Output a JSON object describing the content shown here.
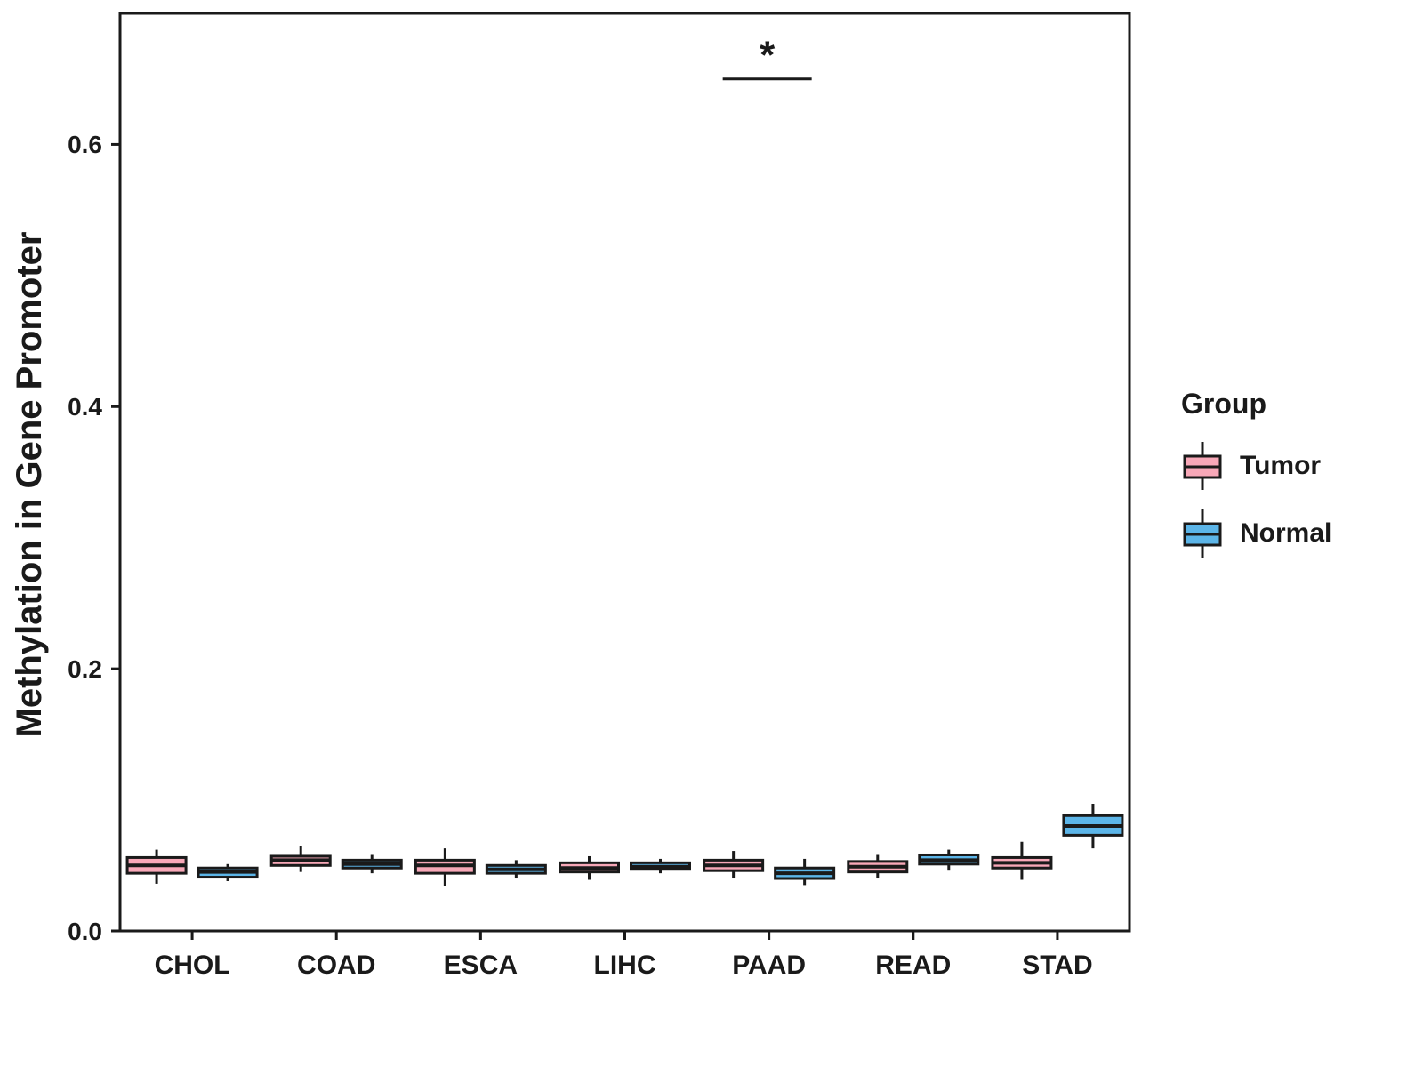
{
  "chart_data": {
    "type": "boxplot",
    "title": "",
    "ylabel": "Methylation in Gene Promoter",
    "xlabel": "",
    "categories": [
      "CHOL",
      "COAD",
      "ESCA",
      "LIHC",
      "PAAD",
      "READ",
      "STAD"
    ],
    "ylim": [
      0,
      0.7
    ],
    "yticks": [
      0.0,
      0.2,
      0.4,
      0.6
    ],
    "grid": "off",
    "legend": {
      "title": "Group",
      "position": "right"
    },
    "colors": {
      "tumor": "#F8A8B8",
      "normal": "#5CB5E8",
      "stroke": "#1A1A1A"
    },
    "series": [
      {
        "name": "Tumor",
        "color_key": "tumor",
        "boxes": [
          {
            "low": 0.036,
            "q1": 0.044,
            "median": 0.05,
            "q3": 0.056,
            "high": 0.062
          },
          {
            "low": 0.045,
            "q1": 0.05,
            "median": 0.054,
            "q3": 0.057,
            "high": 0.065
          },
          {
            "low": 0.034,
            "q1": 0.044,
            "median": 0.05,
            "q3": 0.054,
            "high": 0.063
          },
          {
            "low": 0.039,
            "q1": 0.045,
            "median": 0.048,
            "q3": 0.052,
            "high": 0.057
          },
          {
            "low": 0.04,
            "q1": 0.046,
            "median": 0.05,
            "q3": 0.054,
            "high": 0.061
          },
          {
            "low": 0.04,
            "q1": 0.045,
            "median": 0.049,
            "q3": 0.053,
            "high": 0.058
          },
          {
            "low": 0.039,
            "q1": 0.048,
            "median": 0.052,
            "q3": 0.056,
            "high": 0.068
          }
        ]
      },
      {
        "name": "Normal",
        "color_key": "normal",
        "boxes": [
          {
            "low": 0.038,
            "q1": 0.041,
            "median": 0.045,
            "q3": 0.048,
            "high": 0.051
          },
          {
            "low": 0.044,
            "q1": 0.048,
            "median": 0.051,
            "q3": 0.054,
            "high": 0.058
          },
          {
            "low": 0.04,
            "q1": 0.044,
            "median": 0.047,
            "q3": 0.05,
            "high": 0.054
          },
          {
            "low": 0.044,
            "q1": 0.047,
            "median": 0.049,
            "q3": 0.052,
            "high": 0.055
          },
          {
            "low": 0.035,
            "q1": 0.04,
            "median": 0.044,
            "q3": 0.048,
            "high": 0.055
          },
          {
            "low": 0.046,
            "q1": 0.051,
            "median": 0.054,
            "q3": 0.058,
            "high": 0.062
          },
          {
            "low": 0.063,
            "q1": 0.073,
            "median": 0.08,
            "q3": 0.088,
            "high": 0.097
          }
        ]
      }
    ],
    "annotations": [
      {
        "category": "PAAD",
        "label": "*",
        "y": 0.65
      }
    ]
  }
}
